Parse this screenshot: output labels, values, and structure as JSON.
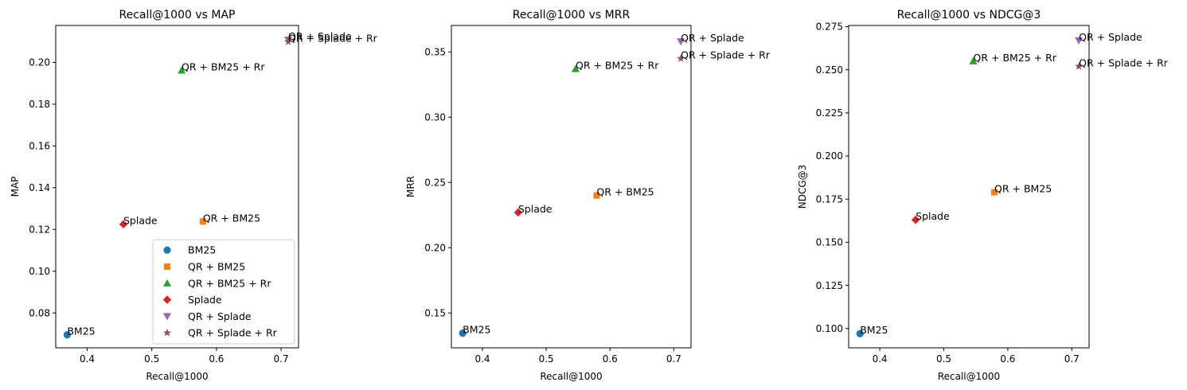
{
  "chart_data": [
    {
      "type": "scatter",
      "title": "Recall@1000 vs MAP",
      "xlabel": "Recall@1000",
      "ylabel": "MAP",
      "xlim": [
        0.3513,
        0.727
      ],
      "ylim": [
        0.0633,
        0.2177
      ],
      "xticks": [
        0.4,
        0.5,
        0.6,
        0.7
      ],
      "xtick_labels": [
        "0.4",
        "0.5",
        "0.6",
        "0.7"
      ],
      "yticks": [
        0.08,
        0.1,
        0.12,
        0.14,
        0.16,
        0.18,
        0.2
      ],
      "ytick_labels": [
        "0.08",
        "0.10",
        "0.12",
        "0.14",
        "0.16",
        "0.18",
        "0.20"
      ],
      "grid": false,
      "legend_placement": "lower right",
      "series": [
        {
          "name": "BM25",
          "x": 0.369,
          "y": 0.0695,
          "annotation": "BM25",
          "marker": "circle",
          "color": "#1f77b4"
        },
        {
          "name": "QR + BM25",
          "x": 0.579,
          "y": 0.1238,
          "annotation": "QR + BM25",
          "marker": "square",
          "color": "#ff7f0e"
        },
        {
          "name": "QR + BM25 + Rr",
          "x": 0.546,
          "y": 0.1962,
          "annotation": "QR + BM25 + Rr",
          "marker": "triangle-up",
          "color": "#2ca02c"
        },
        {
          "name": "Splade",
          "x": 0.456,
          "y": 0.1225,
          "annotation": "Splade",
          "marker": "diamond",
          "color": "#d62728"
        },
        {
          "name": "QR + Splade",
          "x": 0.711,
          "y": 0.2108,
          "annotation": "QR + Splade",
          "marker": "triangle-down",
          "color": "#9467bd"
        },
        {
          "name": "QR + Splade + Rr",
          "x": 0.711,
          "y": 0.2099,
          "annotation": "QR + Splade + Rr",
          "marker": "star",
          "color": "#8c564b"
        }
      ]
    },
    {
      "type": "scatter",
      "title": "Recall@1000 vs MRR",
      "xlabel": "Recall@1000",
      "ylabel": "MRR",
      "xlim": [
        0.3513,
        0.727
      ],
      "ylim": [
        0.1233,
        0.3703
      ],
      "xticks": [
        0.4,
        0.5,
        0.6,
        0.7
      ],
      "xtick_labels": [
        "0.4",
        "0.5",
        "0.6",
        "0.7"
      ],
      "yticks": [
        0.15,
        0.2,
        0.25,
        0.3,
        0.35
      ],
      "ytick_labels": [
        "0.15",
        "0.20",
        "0.25",
        "0.30",
        "0.35"
      ],
      "grid": false,
      "series": [
        {
          "name": "BM25",
          "x": 0.369,
          "y": 0.1345,
          "annotation": "BM25",
          "marker": "circle",
          "color": "#1f77b4"
        },
        {
          "name": "QR + BM25",
          "x": 0.579,
          "y": 0.24,
          "annotation": "QR + BM25",
          "marker": "square",
          "color": "#ff7f0e"
        },
        {
          "name": "QR + BM25 + Rr",
          "x": 0.546,
          "y": 0.337,
          "annotation": "QR + BM25 + Rr",
          "marker": "triangle-up",
          "color": "#2ca02c"
        },
        {
          "name": "Splade",
          "x": 0.456,
          "y": 0.227,
          "annotation": "Splade",
          "marker": "diamond",
          "color": "#d62728"
        },
        {
          "name": "QR + Splade",
          "x": 0.711,
          "y": 0.358,
          "annotation": "QR + Splade",
          "marker": "triangle-down",
          "color": "#9467bd"
        },
        {
          "name": "QR + Splade + Rr",
          "x": 0.711,
          "y": 0.345,
          "annotation": "QR + Splade + Rr",
          "marker": "star",
          "color": "#8c564b"
        }
      ]
    },
    {
      "type": "scatter",
      "title": "Recall@1000 vs NDCG@3",
      "xlabel": "Recall@1000",
      "ylabel": "NDCG@3",
      "xlim": [
        0.3513,
        0.727
      ],
      "ylim": [
        0.0888,
        0.2757
      ],
      "xticks": [
        0.4,
        0.5,
        0.6,
        0.7
      ],
      "xtick_labels": [
        "0.4",
        "0.5",
        "0.6",
        "0.7"
      ],
      "yticks": [
        0.1,
        0.125,
        0.15,
        0.175,
        0.2,
        0.225,
        0.25,
        0.275
      ],
      "ytick_labels": [
        "0.100",
        "0.125",
        "0.150",
        "0.175",
        "0.200",
        "0.225",
        "0.250",
        "0.275"
      ],
      "grid": false,
      "series": [
        {
          "name": "BM25",
          "x": 0.369,
          "y": 0.097,
          "annotation": "BM25",
          "marker": "circle",
          "color": "#1f77b4"
        },
        {
          "name": "QR + BM25",
          "x": 0.579,
          "y": 0.179,
          "annotation": "QR + BM25",
          "marker": "square",
          "color": "#ff7f0e"
        },
        {
          "name": "QR + BM25 + Rr",
          "x": 0.546,
          "y": 0.255,
          "annotation": "QR + BM25 + Rr",
          "marker": "triangle-up",
          "color": "#2ca02c"
        },
        {
          "name": "Splade",
          "x": 0.456,
          "y": 0.163,
          "annotation": "Splade",
          "marker": "diamond",
          "color": "#d62728"
        },
        {
          "name": "QR + Splade",
          "x": 0.711,
          "y": 0.267,
          "annotation": "QR + Splade",
          "marker": "triangle-down",
          "color": "#9467bd"
        },
        {
          "name": "QR + Splade + Rr",
          "x": 0.711,
          "y": 0.252,
          "annotation": "QR + Splade + Rr",
          "marker": "star",
          "color": "#8c564b"
        }
      ]
    }
  ]
}
